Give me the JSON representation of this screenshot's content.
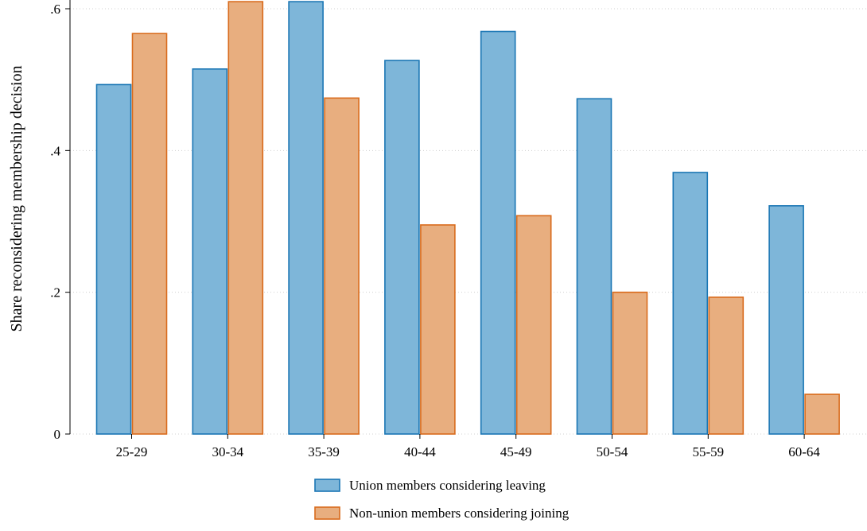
{
  "chart_data": {
    "type": "bar",
    "title": "",
    "xlabel": "",
    "ylabel": "Share reconsidering membership decision",
    "ylim": [
      0,
      0.6
    ],
    "yticks": [
      {
        "value": 0,
        "label": "0"
      },
      {
        "value": 0.2,
        "label": ".2"
      },
      {
        "value": 0.4,
        "label": ".4"
      },
      {
        "value": 0.6,
        "label": ".6"
      }
    ],
    "grid": "horizontal dotted",
    "legend_position": "bottom",
    "categories": [
      "25-29",
      "30-34",
      "35-39",
      "40-44",
      "45-49",
      "50-54",
      "55-59",
      "60-64"
    ],
    "series": [
      {
        "name": "Union members considering leaving",
        "values": [
          0.493,
          0.515,
          0.61,
          0.527,
          0.568,
          0.473,
          0.369,
          0.322
        ],
        "fill": "#7eb6d9",
        "stroke": "#1a76b4"
      },
      {
        "name": "Non-union members considering joining",
        "values": [
          0.565,
          0.61,
          0.474,
          0.295,
          0.308,
          0.2,
          0.193,
          0.056
        ],
        "fill": "#e8ae7f",
        "stroke": "#d96b1c"
      }
    ]
  }
}
